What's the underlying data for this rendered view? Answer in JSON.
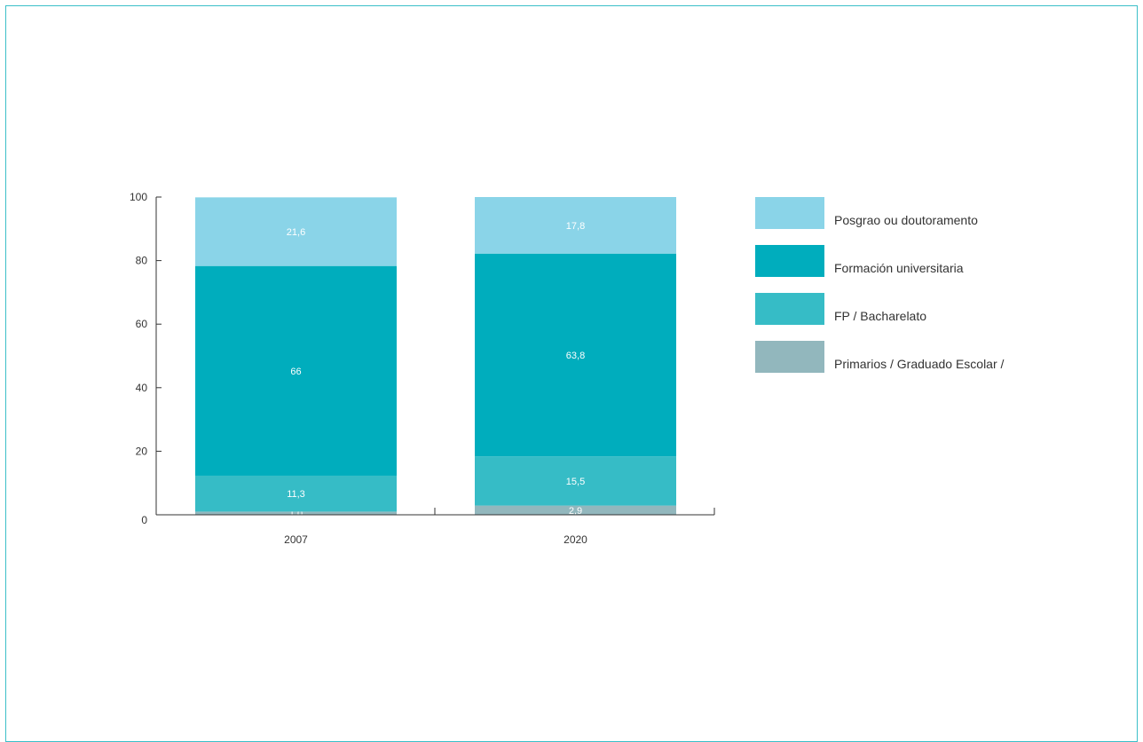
{
  "chart_data": {
    "type": "bar",
    "stacked": true,
    "categories": [
      "2007",
      "2020"
    ],
    "series": [
      {
        "name": "Primarios / Graduado Escolar /",
        "color": "#92b7bd",
        "values": [
          1.0,
          2.9
        ],
        "labels": [
          "1,0",
          "2,9"
        ]
      },
      {
        "name": "FP / Bacharelato",
        "color": "#36bcc6",
        "values": [
          11.3,
          15.5
        ],
        "labels": [
          "11,3",
          "15,5"
        ]
      },
      {
        "name": "Formación universitaria",
        "color": "#00adbd",
        "values": [
          66,
          63.8
        ],
        "labels": [
          "66",
          "63,8"
        ]
      },
      {
        "name": "Posgrao ou doutoramento",
        "color": "#8ad4e8",
        "values": [
          21.6,
          17.8
        ],
        "labels": [
          "21,6",
          "17,8"
        ]
      }
    ],
    "y_ticks": [
      "0",
      "20",
      "40",
      "60",
      "80",
      "100"
    ],
    "ylim": [
      0,
      100
    ],
    "grid": false,
    "legend_position": "right"
  },
  "legend": [
    {
      "label": "Posgrao ou doutoramento",
      "color": "#8ad4e8"
    },
    {
      "label": "Formación universitaria",
      "color": "#00adbd"
    },
    {
      "label": "FP / Bacharelato",
      "color": "#36bcc6"
    },
    {
      "label": "Primarios / Graduado Escolar /",
      "color": "#92b7bd"
    }
  ]
}
